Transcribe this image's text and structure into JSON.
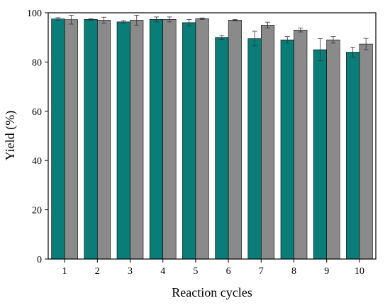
{
  "chart_data": {
    "type": "bar",
    "title": "",
    "xlabel": "Reaction cycles",
    "ylabel": "Yield (%)",
    "ylim": [
      0,
      100
    ],
    "yticks": [
      0,
      20,
      40,
      60,
      80,
      100
    ],
    "categories": [
      "1",
      "2",
      "3",
      "4",
      "5",
      "6",
      "7",
      "8",
      "9",
      "10"
    ],
    "series": [
      {
        "color": "#0a7d78",
        "values": [
          97.5,
          97.3,
          96.3,
          97.3,
          96.0,
          90.0,
          89.5,
          89.0,
          85.0,
          84.0
        ],
        "errors": [
          0.5,
          0.3,
          0.5,
          1.0,
          1.3,
          0.8,
          3.0,
          1.3,
          4.5,
          2.0
        ]
      },
      {
        "color": "#8a8a8a",
        "values": [
          97.2,
          97.0,
          97.0,
          97.3,
          97.6,
          97.0,
          95.0,
          93.0,
          89.0,
          87.3
        ],
        "errors": [
          1.8,
          1.2,
          2.0,
          1.0,
          0.3,
          0.3,
          1.2,
          0.8,
          1.3,
          2.3
        ]
      }
    ],
    "grid": false,
    "legend": "none"
  }
}
